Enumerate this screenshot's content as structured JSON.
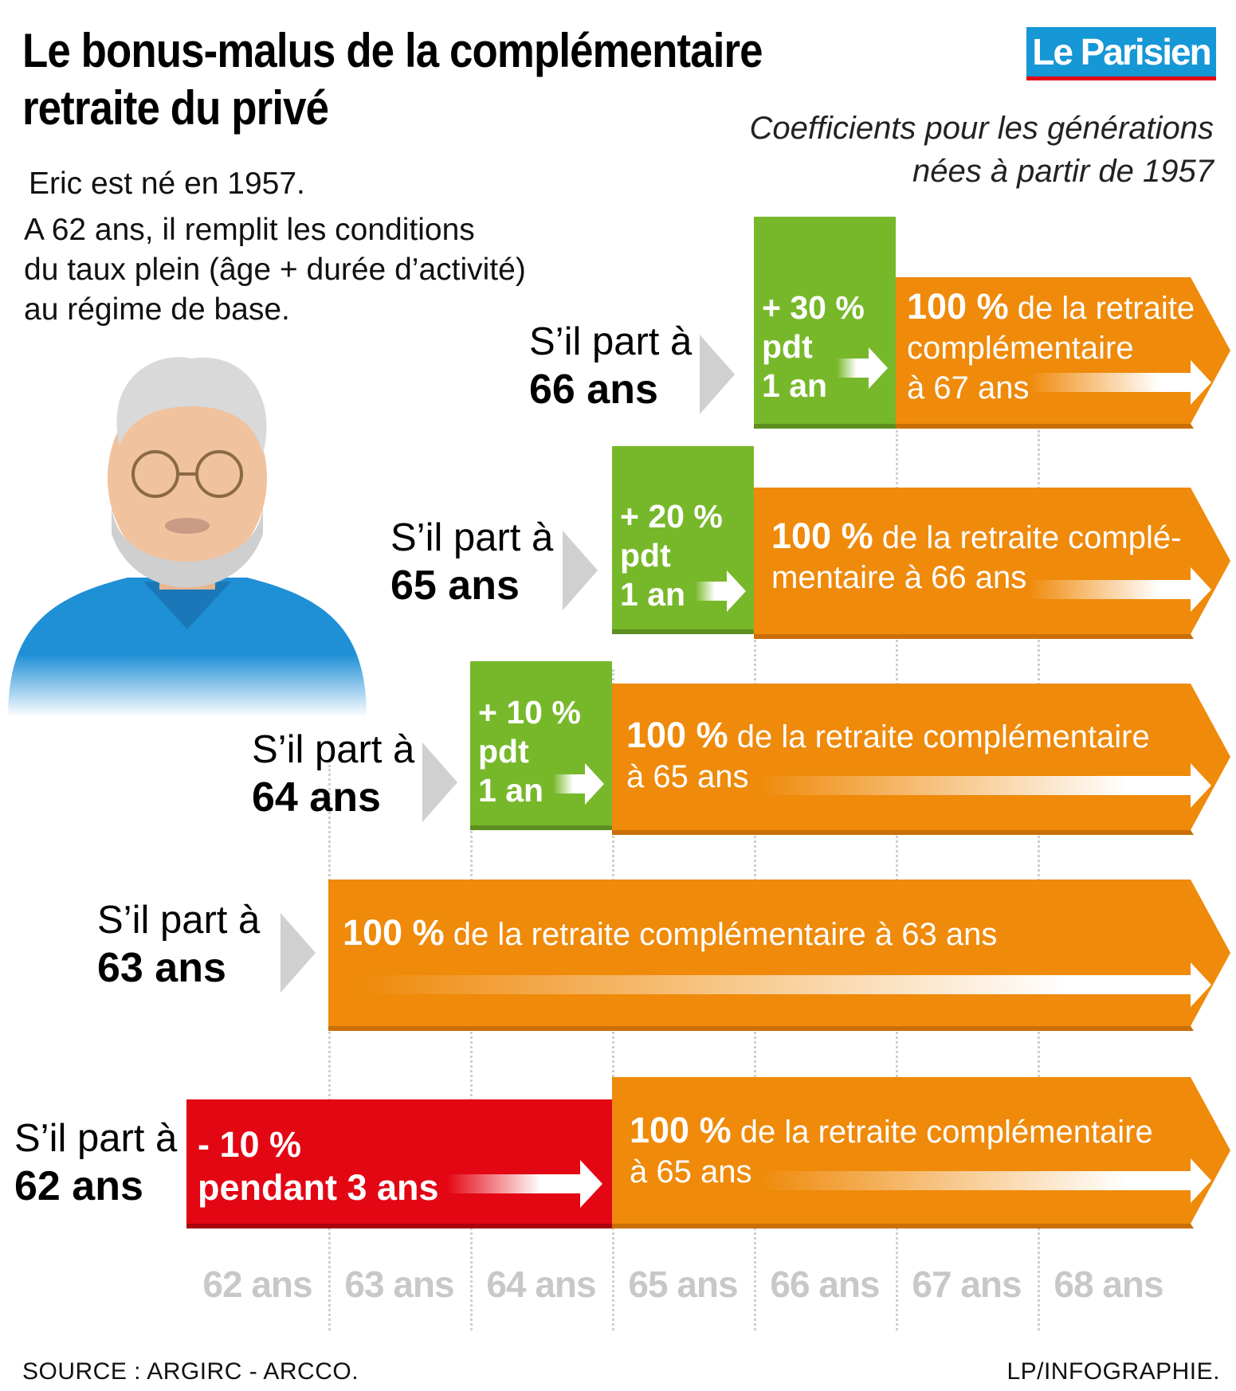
{
  "header": {
    "title_line1": "Le bonus-malus de la complémentaire",
    "title_line2": "retraite du privé",
    "logo": "Le Parisien",
    "subtitle_line1": "Coefficients pour les générations",
    "subtitle_line2": "nées à partir de 1957"
  },
  "intro": {
    "line1": "Eric est né en 1957.",
    "line2": "A 62 ans, il remplit les conditions",
    "line3": "du taux plein (âge + durée d’activité)",
    "line4": "au régime de base."
  },
  "scenarios": [
    {
      "label_prefix": "S’il part à",
      "label_age": "66 ans",
      "box_line1": "+ 30 %",
      "box_line2": "pdt",
      "box_line3": "1 an",
      "bar_strong": "100 %",
      "bar_rest_line1": " de la retraite",
      "bar_line2": "complémentaire",
      "bar_line3": "à 67 ans"
    },
    {
      "label_prefix": "S’il part à",
      "label_age": "65 ans",
      "box_line1": "+ 20 %",
      "box_line2": "pdt",
      "box_line3": "1 an",
      "bar_strong": "100 %",
      "bar_rest_line1": " de la retraite complé-",
      "bar_line2": "mentaire à 66 ans"
    },
    {
      "label_prefix": "S’il part à",
      "label_age": "64 ans",
      "box_line1": "+ 10 %",
      "box_line2": "pdt",
      "box_line3": "1 an",
      "bar_strong": "100 %",
      "bar_rest_line1": " de la retraite complémentaire",
      "bar_line2": "à 65 ans"
    },
    {
      "label_prefix": "S’il part à",
      "label_age": "63 ans",
      "bar_strong": "100 %",
      "bar_rest_line1": " de la retraite complémentaire à 63 ans"
    },
    {
      "label_prefix": "S’il part à",
      "label_age": "62 ans",
      "box_line1": "- 10 %",
      "box_line2": "pendant 3 ans",
      "bar_strong": "100 %",
      "bar_rest_line1": " de la retraite complémentaire",
      "bar_line2": "à 65 ans"
    }
  ],
  "axis": [
    "62 ans",
    "63 ans",
    "64 ans",
    "65 ans",
    "66 ans",
    "67 ans",
    "68 ans"
  ],
  "footer": {
    "source": "SOURCE : ARGIRC - ARCCO.",
    "credit": "LP/INFOGRAPHIE."
  },
  "colors": {
    "orange": "#ef8a0a",
    "orange_dark": "#c96f06",
    "green": "#77b82a",
    "red": "#e30613",
    "blue": "#1697d6",
    "grey_arrow": "#d0d0d0"
  },
  "icons": {
    "person": "person-illustration",
    "pointer": "chevron-right-icon",
    "arrow": "arrow-right-icon"
  }
}
